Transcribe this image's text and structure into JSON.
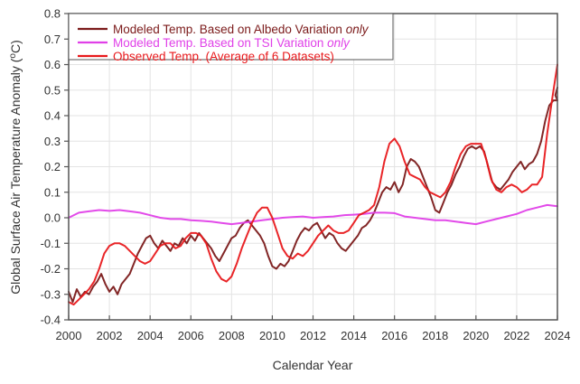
{
  "chart_data": {
    "type": "line",
    "title": "",
    "xlabel": "Calendar Year",
    "ylabel": "Global Surface Air Temperature Anomaly (°C)",
    "ylabel_parts": {
      "main": "Global Surface Air Temperature Anomaly (",
      "sup": "o",
      "unit": "C)"
    },
    "xlim": [
      2000,
      2024
    ],
    "ylim": [
      -0.4,
      0.8
    ],
    "xticks": [
      2000,
      2002,
      2004,
      2006,
      2008,
      2010,
      2012,
      2014,
      2016,
      2018,
      2020,
      2022,
      2024
    ],
    "xtick_labels": [
      "2000",
      "2002",
      "2004",
      "2006",
      "2008",
      "2010",
      "2012",
      "2014",
      "2016",
      "2018",
      "2020",
      "2022",
      "2024"
    ],
    "yticks": [
      -0.4,
      -0.3,
      -0.2,
      -0.1,
      0.0,
      0.1,
      0.2,
      0.3,
      0.4,
      0.5,
      0.6,
      0.7,
      0.8
    ],
    "ytick_labels": [
      "-0.4",
      "-0.3",
      "-0.2",
      "-0.1",
      "0.0",
      "0.1",
      "0.2",
      "0.3",
      "0.4",
      "0.5",
      "0.6",
      "0.7",
      "0.8"
    ],
    "grid": true,
    "legend_position": "top-left",
    "series": [
      {
        "name": "Modeled Temp. Based on Albedo Variation only",
        "legend_main": "Modeled Temp. Based on Albedo Variation ",
        "legend_italic": "only",
        "color": "#7b1a1a",
        "x": [
          2000.0,
          2000.2,
          2000.4,
          2000.6,
          2000.8,
          2001.0,
          2001.2,
          2001.4,
          2001.6,
          2001.8,
          2002.0,
          2002.2,
          2002.4,
          2002.6,
          2002.8,
          2003.0,
          2003.2,
          2003.4,
          2003.6,
          2003.8,
          2004.0,
          2004.2,
          2004.4,
          2004.6,
          2004.8,
          2005.0,
          2005.2,
          2005.4,
          2005.6,
          2005.8,
          2006.0,
          2006.2,
          2006.4,
          2006.6,
          2006.8,
          2007.0,
          2007.2,
          2007.4,
          2007.6,
          2007.8,
          2008.0,
          2008.2,
          2008.4,
          2008.6,
          2008.8,
          2009.0,
          2009.2,
          2009.4,
          2009.6,
          2009.8,
          2010.0,
          2010.2,
          2010.4,
          2010.6,
          2010.8,
          2011.0,
          2011.2,
          2011.4,
          2011.6,
          2011.8,
          2012.0,
          2012.2,
          2012.4,
          2012.6,
          2012.8,
          2013.0,
          2013.2,
          2013.4,
          2013.6,
          2013.8,
          2014.0,
          2014.2,
          2014.4,
          2014.6,
          2014.8,
          2015.0,
          2015.2,
          2015.4,
          2015.6,
          2015.8,
          2016.0,
          2016.2,
          2016.4,
          2016.6,
          2016.8,
          2017.0,
          2017.2,
          2017.4,
          2017.6,
          2017.8,
          2018.0,
          2018.2,
          2018.4,
          2018.6,
          2018.8,
          2019.0,
          2019.2,
          2019.4,
          2019.6,
          2019.8,
          2020.0,
          2020.2,
          2020.4,
          2020.6,
          2020.8,
          2021.0,
          2021.2,
          2021.4,
          2021.6,
          2021.8,
          2022.0,
          2022.2,
          2022.4,
          2022.6,
          2022.8,
          2023.0,
          2023.2,
          2023.4,
          2023.6,
          2023.8,
          2024.0
        ],
        "y": [
          -0.29,
          -0.33,
          -0.28,
          -0.31,
          -0.29,
          -0.3,
          -0.27,
          -0.25,
          -0.22,
          -0.26,
          -0.29,
          -0.27,
          -0.3,
          -0.26,
          -0.24,
          -0.22,
          -0.18,
          -0.14,
          -0.11,
          -0.08,
          -0.07,
          -0.1,
          -0.12,
          -0.09,
          -0.11,
          -0.13,
          -0.1,
          -0.11,
          -0.08,
          -0.1,
          -0.07,
          -0.09,
          -0.06,
          -0.08,
          -0.1,
          -0.12,
          -0.15,
          -0.17,
          -0.14,
          -0.11,
          -0.08,
          -0.07,
          -0.04,
          -0.02,
          -0.01,
          -0.03,
          -0.05,
          -0.07,
          -0.1,
          -0.15,
          -0.19,
          -0.2,
          -0.18,
          -0.19,
          -0.17,
          -0.13,
          -0.09,
          -0.06,
          -0.04,
          -0.05,
          -0.03,
          -0.02,
          -0.05,
          -0.08,
          -0.06,
          -0.07,
          -0.1,
          -0.12,
          -0.13,
          -0.11,
          -0.09,
          -0.07,
          -0.04,
          -0.03,
          -0.01,
          0.02,
          0.06,
          0.1,
          0.12,
          0.11,
          0.14,
          0.1,
          0.13,
          0.2,
          0.23,
          0.22,
          0.2,
          0.16,
          0.12,
          0.08,
          0.03,
          0.02,
          0.06,
          0.1,
          0.13,
          0.17,
          0.2,
          0.24,
          0.27,
          0.28,
          0.27,
          0.28,
          0.26,
          0.2,
          0.14,
          0.12,
          0.11,
          0.13,
          0.15,
          0.18,
          0.2,
          0.22,
          0.19,
          0.21,
          0.22,
          0.25,
          0.3,
          0.38,
          0.44,
          0.46,
          0.46
        ],
        "x_end": [
          2023.8,
          2023.9,
          2024.0
        ],
        "y_end": [
          0.46,
          0.48,
          0.51
        ]
      },
      {
        "name": "Modeled Temp. Based on TSI Variation only",
        "legend_main": "Modeled Temp. Based on TSI Variation ",
        "legend_italic": "only",
        "color": "#e040e8",
        "x": [
          2000.0,
          2000.5,
          2001.0,
          2001.5,
          2002.0,
          2002.5,
          2003.0,
          2003.5,
          2004.0,
          2004.5,
          2005.0,
          2005.5,
          2006.0,
          2006.5,
          2007.0,
          2007.5,
          2008.0,
          2008.5,
          2009.0,
          2009.5,
          2010.0,
          2010.5,
          2011.0,
          2011.5,
          2012.0,
          2012.5,
          2013.0,
          2013.5,
          2014.0,
          2014.5,
          2015.0,
          2015.5,
          2016.0,
          2016.5,
          2017.0,
          2017.5,
          2018.0,
          2018.5,
          2019.0,
          2019.5,
          2020.0,
          2020.5,
          2021.0,
          2021.5,
          2022.0,
          2022.5,
          2023.0,
          2023.5,
          2024.0
        ],
        "y": [
          0.0,
          0.02,
          0.025,
          0.03,
          0.027,
          0.03,
          0.025,
          0.02,
          0.01,
          0.0,
          -0.005,
          -0.005,
          -0.01,
          -0.012,
          -0.015,
          -0.02,
          -0.025,
          -0.02,
          -0.015,
          -0.01,
          -0.005,
          0.0,
          0.003,
          0.005,
          0.0,
          0.003,
          0.005,
          0.01,
          0.012,
          0.015,
          0.02,
          0.02,
          0.018,
          0.005,
          0.0,
          -0.005,
          -0.01,
          -0.01,
          -0.015,
          -0.02,
          -0.025,
          -0.015,
          -0.005,
          0.005,
          0.015,
          0.03,
          0.04,
          0.05,
          0.045
        ],
        "x_end": [],
        "y_end": []
      },
      {
        "name": "Observed Temp. (Average of 6 Datasets)",
        "legend_main": "Observed Temp. (Average of 6 Datasets)",
        "legend_italic": "",
        "color": "#e8191c",
        "x": [
          2000.0,
          2000.25,
          2000.5,
          2000.75,
          2001.0,
          2001.25,
          2001.5,
          2001.75,
          2002.0,
          2002.25,
          2002.5,
          2002.75,
          2003.0,
          2003.25,
          2003.5,
          2003.75,
          2004.0,
          2004.25,
          2004.5,
          2004.75,
          2005.0,
          2005.25,
          2005.5,
          2005.75,
          2006.0,
          2006.25,
          2006.5,
          2006.75,
          2007.0,
          2007.25,
          2007.5,
          2007.75,
          2008.0,
          2008.25,
          2008.5,
          2008.75,
          2009.0,
          2009.25,
          2009.5,
          2009.75,
          2010.0,
          2010.25,
          2010.5,
          2010.75,
          2011.0,
          2011.25,
          2011.5,
          2011.75,
          2012.0,
          2012.25,
          2012.5,
          2012.75,
          2013.0,
          2013.25,
          2013.5,
          2013.75,
          2014.0,
          2014.25,
          2014.5,
          2014.75,
          2015.0,
          2015.25,
          2015.5,
          2015.75,
          2016.0,
          2016.25,
          2016.5,
          2016.75,
          2017.0,
          2017.25,
          2017.5,
          2017.75,
          2018.0,
          2018.25,
          2018.5,
          2018.75,
          2019.0,
          2019.25,
          2019.5,
          2019.75,
          2020.0,
          2020.25,
          2020.5,
          2020.75,
          2021.0,
          2021.25,
          2021.5,
          2021.75,
          2022.0,
          2022.25,
          2022.5,
          2022.75,
          2023.0,
          2023.25,
          2023.5,
          2023.75,
          2024.0
        ],
        "y": [
          -0.33,
          -0.34,
          -0.32,
          -0.3,
          -0.28,
          -0.25,
          -0.2,
          -0.14,
          -0.11,
          -0.1,
          -0.1,
          -0.11,
          -0.13,
          -0.15,
          -0.17,
          -0.18,
          -0.17,
          -0.14,
          -0.11,
          -0.1,
          -0.1,
          -0.12,
          -0.11,
          -0.08,
          -0.06,
          -0.06,
          -0.07,
          -0.1,
          -0.16,
          -0.21,
          -0.24,
          -0.25,
          -0.23,
          -0.18,
          -0.12,
          -0.07,
          -0.02,
          0.02,
          0.04,
          0.04,
          0.0,
          -0.06,
          -0.12,
          -0.15,
          -0.16,
          -0.14,
          -0.15,
          -0.13,
          -0.1,
          -0.07,
          -0.05,
          -0.03,
          -0.05,
          -0.06,
          -0.06,
          -0.05,
          -0.02,
          0.01,
          0.02,
          0.03,
          0.05,
          0.12,
          0.22,
          0.29,
          0.31,
          0.28,
          0.22,
          0.17,
          0.16,
          0.15,
          0.12,
          0.1,
          0.09,
          0.08,
          0.1,
          0.14,
          0.2,
          0.25,
          0.28,
          0.29,
          0.29,
          0.29,
          0.23,
          0.15,
          0.11,
          0.1,
          0.12,
          0.13,
          0.12,
          0.1,
          0.11,
          0.13,
          0.13,
          0.16,
          0.33,
          0.47,
          0.6
        ],
        "x_end": [],
        "y_end": []
      }
    ]
  }
}
